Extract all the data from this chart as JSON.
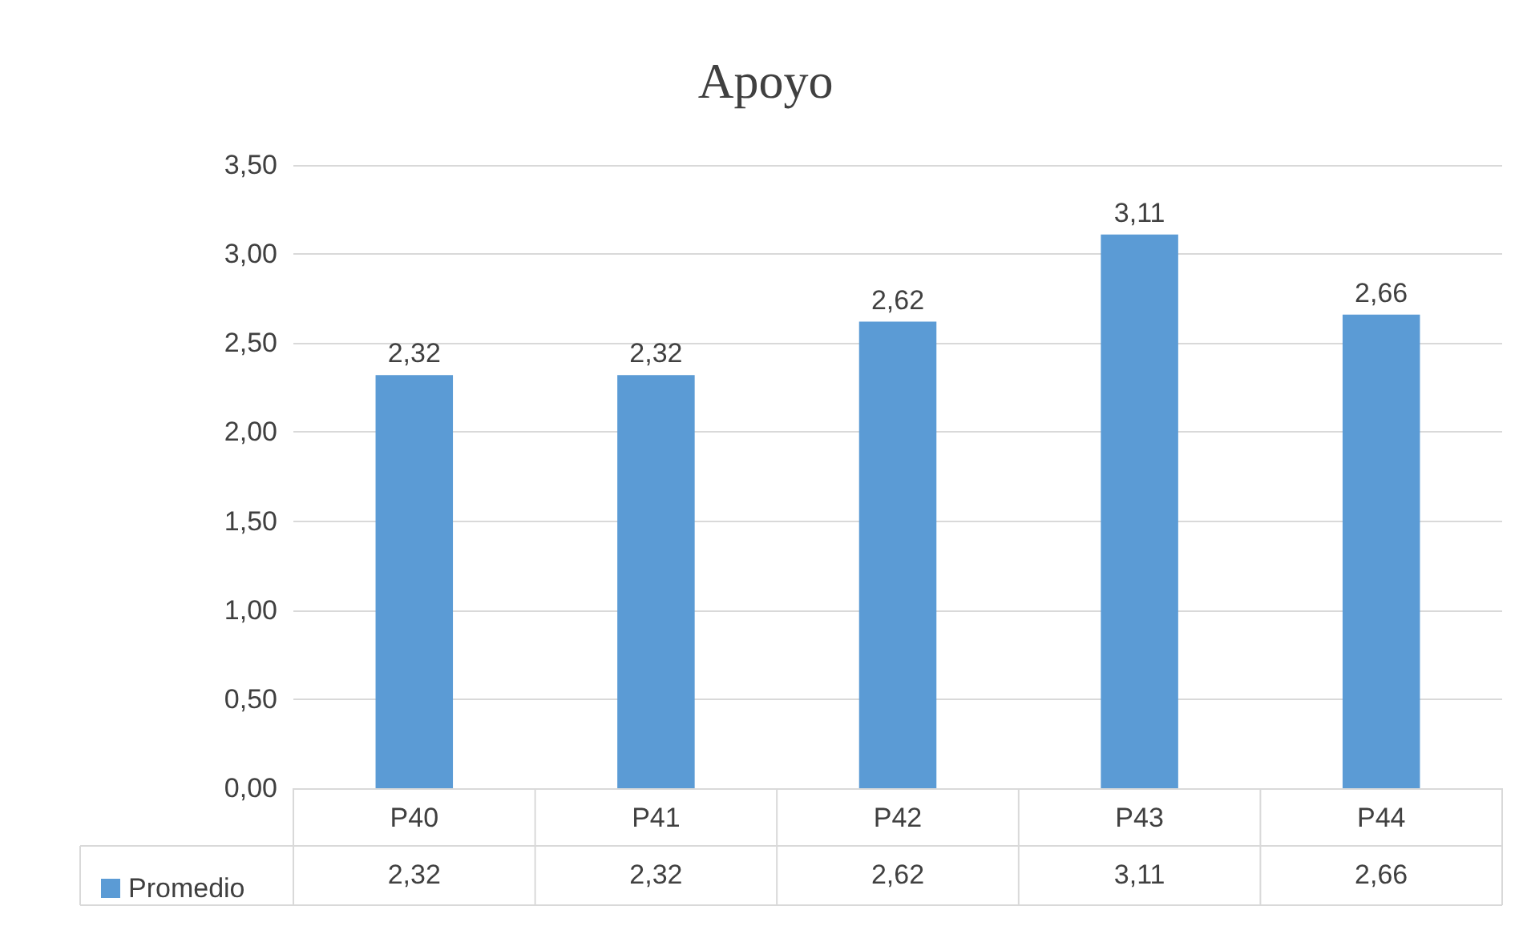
{
  "chart_data": {
    "type": "bar",
    "title": "Apoyo",
    "categories": [
      "P40",
      "P41",
      "P42",
      "P43",
      "P44"
    ],
    "series": [
      {
        "name": "Promedio",
        "color": "#5b9bd5",
        "values": [
          2.32,
          2.32,
          2.62,
          3.11,
          2.66
        ],
        "value_labels": [
          "2,32",
          "2,32",
          "2,62",
          "3,11",
          "2,66"
        ]
      }
    ],
    "ylim": [
      0,
      3.5
    ],
    "yticks": [
      {
        "value": 0,
        "label": "0,00"
      },
      {
        "value": 0.5,
        "label": "0,50"
      },
      {
        "value": 1,
        "label": "1,00"
      },
      {
        "value": 1.5,
        "label": "1,50"
      },
      {
        "value": 2,
        "label": "2,00"
      },
      {
        "value": 2.5,
        "label": "2,50"
      },
      {
        "value": 3,
        "label": "3,00"
      },
      {
        "value": 3.5,
        "label": "3,50"
      }
    ],
    "grid": "y",
    "legend": "bottom"
  }
}
